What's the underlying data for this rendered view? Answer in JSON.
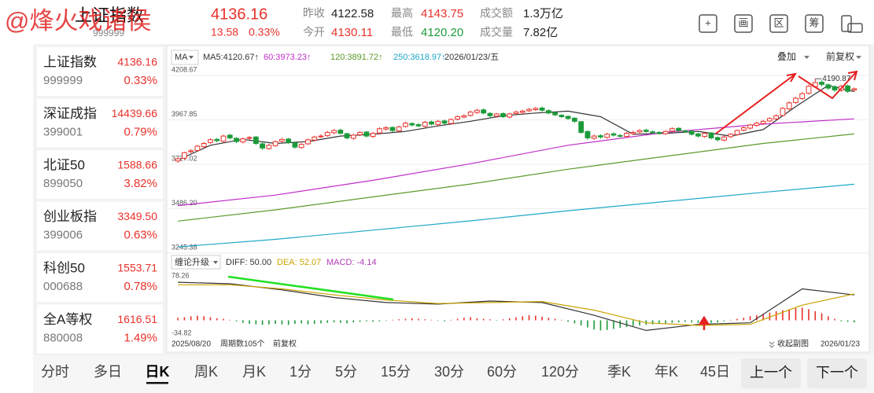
{
  "header": {
    "watermark": "@烽火戏诸侯",
    "name": "上证指数",
    "code": "999999",
    "price": "4136.16",
    "change": "13.58",
    "change_pct": "0.33%",
    "stats": [
      {
        "label": "昨收",
        "value": "4122.58",
        "color": "#222222"
      },
      {
        "label": "最高",
        "value": "4143.75",
        "color": "#e8312a"
      },
      {
        "label": "成交额",
        "value": "1.3万亿",
        "color": "#222222"
      },
      {
        "label": "今开",
        "value": "4130.11",
        "color": "#e8312a"
      },
      {
        "label": "最低",
        "value": "4120.20",
        "color": "#1c9b3a"
      },
      {
        "label": "成交量",
        "value": "7.82亿",
        "color": "#222222"
      }
    ],
    "toolbar": [
      "+",
      "画",
      "区",
      "筹"
    ]
  },
  "sidebar": [
    {
      "name": "上证指数",
      "price": "4136.16",
      "code": "999999",
      "change": "0.33%"
    },
    {
      "name": "深证成指",
      "price": "14439.66",
      "code": "399001",
      "change": "0.79%"
    },
    {
      "name": "北证50",
      "price": "1588.66",
      "code": "899050",
      "change": "3.82%"
    },
    {
      "name": "创业板指",
      "price": "3349.50",
      "code": "399006",
      "change": "0.63%"
    },
    {
      "name": "科创50",
      "price": "1553.71",
      "code": "000688",
      "change": "0.78%"
    },
    {
      "name": "全A等权",
      "price": "1616.51",
      "code": "880008",
      "change": "1.49%"
    }
  ],
  "tabs": [
    {
      "label": "分时"
    },
    {
      "label": "多日"
    },
    {
      "label": "日K",
      "selected": true
    },
    {
      "label": "周K"
    },
    {
      "label": "月K"
    },
    {
      "label": "1分"
    },
    {
      "label": "5分"
    },
    {
      "label": "15分"
    },
    {
      "label": "30分"
    },
    {
      "label": "60分"
    },
    {
      "label": "120分"
    },
    {
      "label": "季K"
    },
    {
      "label": "年K"
    },
    {
      "label": "45日"
    }
  ],
  "nav": [
    "上一个",
    "下一个"
  ],
  "chart_data": [
    {
      "type": "candlestick",
      "indicator": "MA",
      "date": "2026/01/23/五",
      "overlay": "叠加",
      "adjust": "前复权",
      "up_color": "#e8312a",
      "down_color": "#1c9b3a",
      "ylim": [
        3245.38,
        4208.67
      ],
      "yticks": [
        4208.67,
        3967.85,
        3727.02,
        {
          "value": 3486.2,
          "label": "3486.20"
        },
        3245.38
      ],
      "grid": true,
      "open": [
        3745,
        3760,
        3795,
        3802,
        3822,
        3845,
        3862,
        3852,
        3885,
        3868,
        3848,
        3868,
        3875,
        3838,
        3812,
        3828,
        3852,
        3864,
        3843,
        3818,
        3838,
        3858,
        3878,
        3882,
        3898,
        3912,
        3893,
        3868,
        3887,
        3902,
        3878,
        3897,
        3918,
        3927,
        3908,
        3932,
        3948,
        3942,
        3933,
        3957,
        3943,
        3962,
        3948,
        3972,
        3983,
        3992,
        4008,
        4022,
        4003,
        3988,
        4002,
        3983,
        4002,
        4008,
        4017,
        4023,
        4032,
        4018,
        4007,
        3993,
        3987,
        3977,
        3958,
        3905,
        3868,
        3882,
        3873,
        3892,
        3883,
        3878,
        3893,
        3902,
        3912,
        3903,
        3900,
        3893,
        3907,
        3922,
        3908,
        3907,
        3892,
        3878,
        3897,
        3872,
        3858,
        3877,
        3888,
        3912,
        3923,
        3938,
        3948,
        3962,
        3973,
        3992,
        4028,
        4062,
        4083,
        4112,
        4148,
        4172,
        4158,
        4148,
        4128,
        4152,
        4130.11
      ],
      "high": [
        3765,
        3795,
        3810,
        3832,
        3848,
        3868,
        3870,
        3888,
        3892,
        3874,
        3872,
        3880,
        3880,
        3845,
        3838,
        3856,
        3870,
        3870,
        3848,
        3842,
        3866,
        3882,
        3890,
        3908,
        3918,
        3920,
        3898,
        3892,
        3906,
        3908,
        3902,
        3928,
        3934,
        3932,
        3936,
        3958,
        3955,
        3950,
        3962,
        3964,
        3968,
        3970,
        3976,
        3992,
        3998,
        4018,
        4028,
        4030,
        4010,
        4006,
        4008,
        4006,
        4018,
        4022,
        4032,
        4038,
        4040,
        4025,
        4012,
        4000,
        3992,
        3982,
        3962,
        3910,
        3888,
        3890,
        3898,
        3900,
        3892,
        3902,
        3908,
        3918,
        3920,
        3910,
        3906,
        3912,
        3928,
        3928,
        3915,
        3912,
        3898,
        3902,
        3902,
        3878,
        3882,
        3896,
        3916,
        3932,
        3946,
        3958,
        3968,
        3982,
        3998,
        4038,
        4068,
        4092,
        4118,
        4160,
        4190.87,
        4182,
        4165,
        4155,
        4158,
        4160,
        4143.75
      ],
      "low": [
        3735,
        3752,
        3788,
        3796,
        3815,
        3838,
        3846,
        3845,
        3862,
        3842,
        3840,
        3860,
        3832,
        3805,
        3806,
        3822,
        3845,
        3838,
        3812,
        3810,
        3832,
        3850,
        3870,
        3876,
        3890,
        3888,
        3862,
        3860,
        3880,
        3872,
        3870,
        3890,
        3910,
        3902,
        3902,
        3926,
        3932,
        3928,
        3926,
        3938,
        3936,
        3942,
        3942,
        3964,
        3976,
        3985,
        4000,
        3998,
        3982,
        3980,
        3978,
        3976,
        3995,
        4000,
        4010,
        4016,
        4012,
        3998,
        3988,
        3978,
        3968,
        3952,
        3892,
        3860,
        3860,
        3866,
        3866,
        3878,
        3872,
        3872,
        3886,
        3895,
        3898,
        3890,
        3888,
        3886,
        3900,
        3902,
        3898,
        3882,
        3872,
        3870,
        3862,
        3850,
        3852,
        3870,
        3882,
        3905,
        3916,
        3930,
        3940,
        3955,
        3966,
        3986,
        4020,
        4055,
        4076,
        4105,
        4140,
        4150,
        4130,
        4118,
        4120,
        4115,
        4120.2
      ],
      "close": [
        3757,
        3790,
        3800,
        3825,
        3840,
        3860,
        3855,
        3880,
        3870,
        3850,
        3865,
        3872,
        3840,
        3815,
        3830,
        3850,
        3862,
        3845,
        3820,
        3835,
        3860,
        3875,
        3880,
        3900,
        3910,
        3895,
        3870,
        3885,
        3900,
        3880,
        3895,
        3920,
        3925,
        3910,
        3930,
        3950,
        3940,
        3935,
        3955,
        3945,
        3960,
        3950,
        3970,
        3985,
        3990,
        4010,
        4020,
        4005,
        3990,
        4000,
        3985,
        4000,
        4010,
        4015,
        4025,
        4030,
        4020,
        4005,
        3995,
        3985,
        3975,
        3960,
        3900,
        3870,
        3880,
        3875,
        3890,
        3885,
        3880,
        3895,
        3900,
        3910,
        3905,
        3898,
        3895,
        3905,
        3920,
        3910,
        3905,
        3890,
        3880,
        3895,
        3870,
        3860,
        3875,
        3890,
        3910,
        3925,
        3940,
        3950,
        3960,
        3975,
        3990,
        4030,
        4060,
        4085,
        4110,
        4150,
        4170,
        4160,
        4140,
        4130,
        4150,
        4122.58,
        4136.16
      ],
      "series": [
        {
          "name": "MA5:4120.67↑",
          "color": "#333333",
          "x": [
            0,
            5,
            10,
            15,
            20,
            25,
            30,
            35,
            40,
            45,
            50,
            55,
            60,
            65,
            70,
            75,
            80,
            85,
            90,
            95,
            100,
            104
          ],
          "values": [
            3750,
            3830,
            3862,
            3840,
            3850,
            3880,
            3890,
            3905,
            3935,
            3960,
            3990,
            4005,
            4015,
            3985,
            3890,
            3895,
            3905,
            3880,
            3915,
            4040,
            4155,
            4120.67
          ]
        },
        {
          "name": "60:3973.23↑",
          "color": "#c02fc8",
          "x": [
            0,
            15,
            30,
            45,
            60,
            75,
            90,
            104
          ],
          "values": [
            3503,
            3560,
            3640,
            3730,
            3830,
            3900,
            3945,
            3973.23
          ]
        },
        {
          "name": "120:3891.72↑",
          "color": "#5a9a2a",
          "x": [
            0,
            15,
            30,
            45,
            60,
            75,
            90,
            104
          ],
          "values": [
            3419,
            3480,
            3550,
            3620,
            3700,
            3770,
            3840,
            3891.72
          ]
        },
        {
          "name": "250:3618.97↑",
          "color": "#1fa8c8",
          "x": [
            0,
            15,
            30,
            45,
            60,
            75,
            90,
            104
          ],
          "values": [
            3279,
            3320,
            3370,
            3420,
            3475,
            3525,
            3575,
            3618.97
          ]
        }
      ]
    },
    {
      "type": "macd",
      "indicator": "缠论升级",
      "ylim": [
        -34.82,
        78.26
      ],
      "yticks": [
        78.26,
        -34.82
      ],
      "bars": {
        "name": "MACD: -4.14",
        "color": "#b03ab8",
        "up_color": "#e8312a",
        "down_color": "#1c9b3a",
        "values": [
          5,
          6,
          8,
          9,
          8,
          6,
          4,
          3,
          1,
          -2,
          -5,
          -7,
          -8,
          -9,
          -8,
          -7,
          -8,
          -9,
          -7,
          -6,
          -8,
          -7,
          -6,
          -5,
          -4,
          -5,
          -6,
          -4,
          -3,
          -2,
          -3,
          -2,
          -1,
          1,
          2,
          3,
          4,
          3,
          2,
          1,
          -1,
          -2,
          1,
          3,
          5,
          6,
          4,
          3,
          2,
          -1,
          2,
          4,
          6,
          8,
          10,
          9,
          7,
          5,
          3,
          1,
          -3,
          -6,
          -10,
          -14,
          -18,
          -20,
          -19,
          -17,
          -15,
          -13,
          -11,
          -10,
          -9,
          -8,
          -7,
          -6,
          -5,
          -4,
          -3,
          -4,
          -5,
          -6,
          -5,
          -4,
          -2,
          1,
          3,
          5,
          8,
          10,
          12,
          15,
          18,
          20,
          22,
          24,
          25,
          22,
          18,
          14,
          8,
          3,
          -2,
          -3,
          -4.14
        ]
      },
      "series": [
        {
          "name": "DIFF: 50.00",
          "color": "#333333",
          "x": [
            0,
            8,
            16,
            24,
            32,
            40,
            48,
            56,
            64,
            72,
            80,
            88,
            96,
            104
          ],
          "values": [
            75,
            72,
            60,
            45,
            35,
            32,
            38,
            35,
            10,
            -20,
            -8,
            -5,
            62,
            50
          ]
        },
        {
          "name": "DEA: 52.07",
          "color": "#c9a400",
          "x": [
            0,
            8,
            16,
            24,
            32,
            40,
            48,
            56,
            64,
            72,
            80,
            88,
            96,
            104
          ],
          "values": [
            70,
            70,
            62,
            50,
            40,
            33,
            35,
            37,
            20,
            -5,
            -10,
            -8,
            30,
            52.07
          ]
        }
      ],
      "start": "2025/08/20",
      "count": "周期数105个",
      "adjust": "前复权",
      "collapse": "收起副图",
      "end": "2026/01/23"
    }
  ]
}
